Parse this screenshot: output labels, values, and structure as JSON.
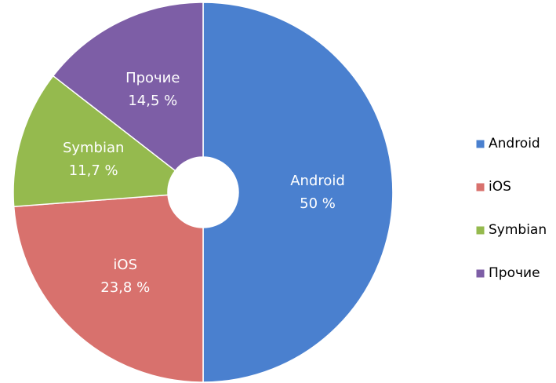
{
  "chart_data": {
    "type": "donut",
    "categories": [
      "Android",
      "iOS",
      "Symbian",
      "Прочие"
    ],
    "values": [
      50,
      23.8,
      11.7,
      14.5
    ],
    "value_labels": [
      "50 %",
      "23,8 %",
      "11,7 %",
      "14,5 %"
    ],
    "colors": [
      "#4a80cf",
      "#d8716d",
      "#95ba4e",
      "#7d5ea6"
    ],
    "legend": "right"
  }
}
